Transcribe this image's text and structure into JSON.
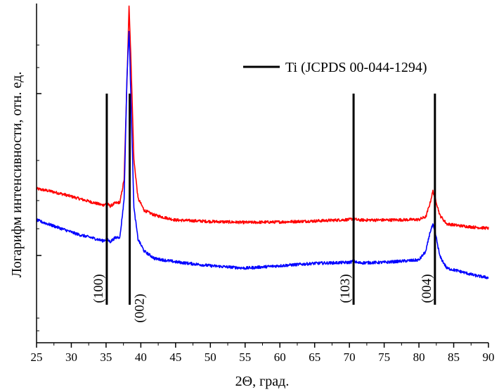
{
  "chart_data": {
    "type": "line",
    "xlabel": "2Θ, град.",
    "ylabel": "Логарифм интенсивности, отн. ед.",
    "xlim": [
      25,
      90
    ],
    "x_ticks": [
      25,
      30,
      35,
      40,
      45,
      50,
      55,
      60,
      65,
      70,
      75,
      80,
      85,
      90
    ],
    "y_scale": "log",
    "y_ticks_labeled": false,
    "legend": {
      "position": "top-right",
      "label": "Ti (JCPDS 00-044-1294)"
    },
    "reference_lines": [
      {
        "x": 35.1,
        "label": "(100)"
      },
      {
        "x": 38.4,
        "label": "(002)"
      },
      {
        "x": 70.6,
        "label": "(103)"
      },
      {
        "x": 82.3,
        "label": "(004)"
      }
    ],
    "series": [
      {
        "color": "#ff0000",
        "x": [
          25,
          27,
          29,
          31,
          33,
          34.5,
          35.1,
          35.6,
          36.3,
          37.0,
          37.6,
          38.0,
          38.3,
          38.6,
          39.0,
          39.6,
          40.5,
          42,
          45,
          50,
          55,
          60,
          65,
          70,
          70.6,
          71.2,
          75,
          80,
          81,
          81.6,
          82.0,
          82.4,
          83.0,
          84,
          86,
          88,
          90
        ],
        "y": [
          0.62,
          0.615,
          0.608,
          0.6,
          0.592,
          0.586,
          0.589,
          0.584,
          0.59,
          0.592,
          0.64,
          0.84,
          1.0,
          0.88,
          0.68,
          0.6,
          0.575,
          0.565,
          0.555,
          0.552,
          0.55,
          0.551,
          0.553,
          0.556,
          0.558,
          0.555,
          0.555,
          0.556,
          0.562,
          0.59,
          0.615,
          0.598,
          0.565,
          0.547,
          0.543,
          0.54,
          0.538
        ]
      },
      {
        "color": "#0000ff",
        "x": [
          25,
          27,
          29,
          31,
          33,
          34.5,
          35.1,
          35.6,
          36.3,
          37.0,
          37.6,
          38.0,
          38.3,
          38.6,
          39.0,
          39.6,
          40.5,
          42,
          45,
          50,
          55,
          60,
          65,
          70,
          70.6,
          71.2,
          75,
          80,
          81,
          81.6,
          82.0,
          82.4,
          83.0,
          84,
          86,
          88,
          90
        ],
        "y": [
          0.555,
          0.545,
          0.535,
          0.525,
          0.518,
          0.512,
          0.515,
          0.51,
          0.518,
          0.52,
          0.6,
          0.85,
          0.95,
          0.8,
          0.58,
          0.515,
          0.49,
          0.475,
          0.468,
          0.46,
          0.455,
          0.46,
          0.465,
          0.467,
          0.47,
          0.466,
          0.467,
          0.472,
          0.49,
          0.53,
          0.545,
          0.525,
          0.48,
          0.455,
          0.448,
          0.44,
          0.435
        ]
      }
    ]
  }
}
